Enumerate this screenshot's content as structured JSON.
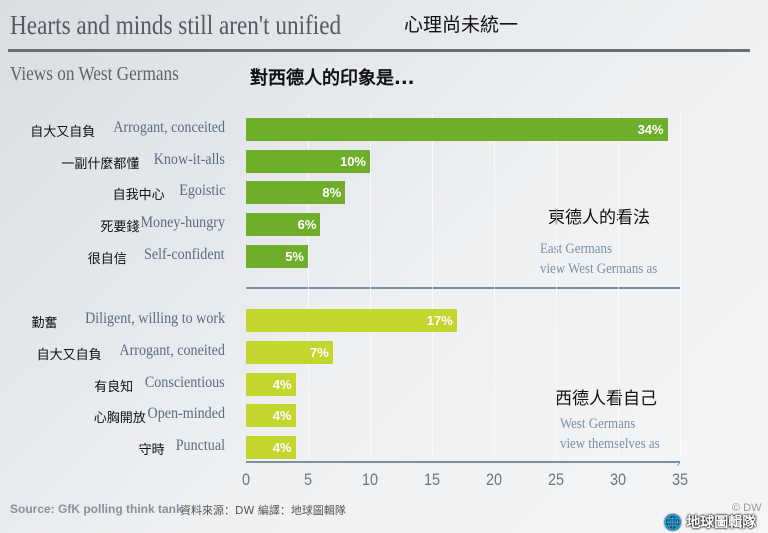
{
  "header": {
    "title": "Hearts and minds still aren't unified",
    "title_zh": "心理尚未統一",
    "subtitle": "Views on West Germans",
    "subtitle_zh": "對西德人的印象是..."
  },
  "chart_data": {
    "type": "bar",
    "orientation": "horizontal",
    "xlim": [
      0,
      35
    ],
    "ticks": [
      "0",
      "5",
      "10",
      "15",
      "20",
      "25",
      "30",
      "35"
    ],
    "groups": [
      {
        "name": "East Germans view West Germans as",
        "name_zh": "東德人的看法",
        "color": "#6fae2a",
        "categories": [
          "Arrogant, conceited",
          "Know-it-alls",
          "Egoistic",
          "Money-hungry",
          "Self-confident"
        ],
        "categories_zh": [
          "自大又自負",
          "一副什麼都懂",
          "自我中心",
          "死要錢",
          "很自信"
        ],
        "values": [
          34,
          10,
          8,
          6,
          5
        ],
        "labels": [
          "34%",
          "10%",
          "8%",
          "6%",
          "5%"
        ]
      },
      {
        "name": "West Germans view themselves as",
        "name_zh": "西德人看自己",
        "color": "#c2d62e",
        "categories": [
          "Diligent, willing to work",
          "Arrogant, coneited",
          "Conscientious",
          "Open-minded",
          "Punctual"
        ],
        "categories_zh": [
          "勤奮",
          "自大又自負",
          "有良知",
          "心胸開放",
          "守時"
        ],
        "values": [
          17,
          7,
          4,
          4,
          4
        ],
        "labels": [
          "17%",
          "7%",
          "4%",
          "4%",
          "4%"
        ]
      }
    ]
  },
  "notes": {
    "east_line1": "East Germans",
    "east_line2": "view West Germans as",
    "west_line1": "West Germans",
    "west_line2": "view themselves as"
  },
  "footer": {
    "source": "Source: GfK polling think tank",
    "source_zh": "資料來源：DW 編譯：地球圖輯隊",
    "copyright": "© DW",
    "logo": "地球圖輯隊"
  }
}
